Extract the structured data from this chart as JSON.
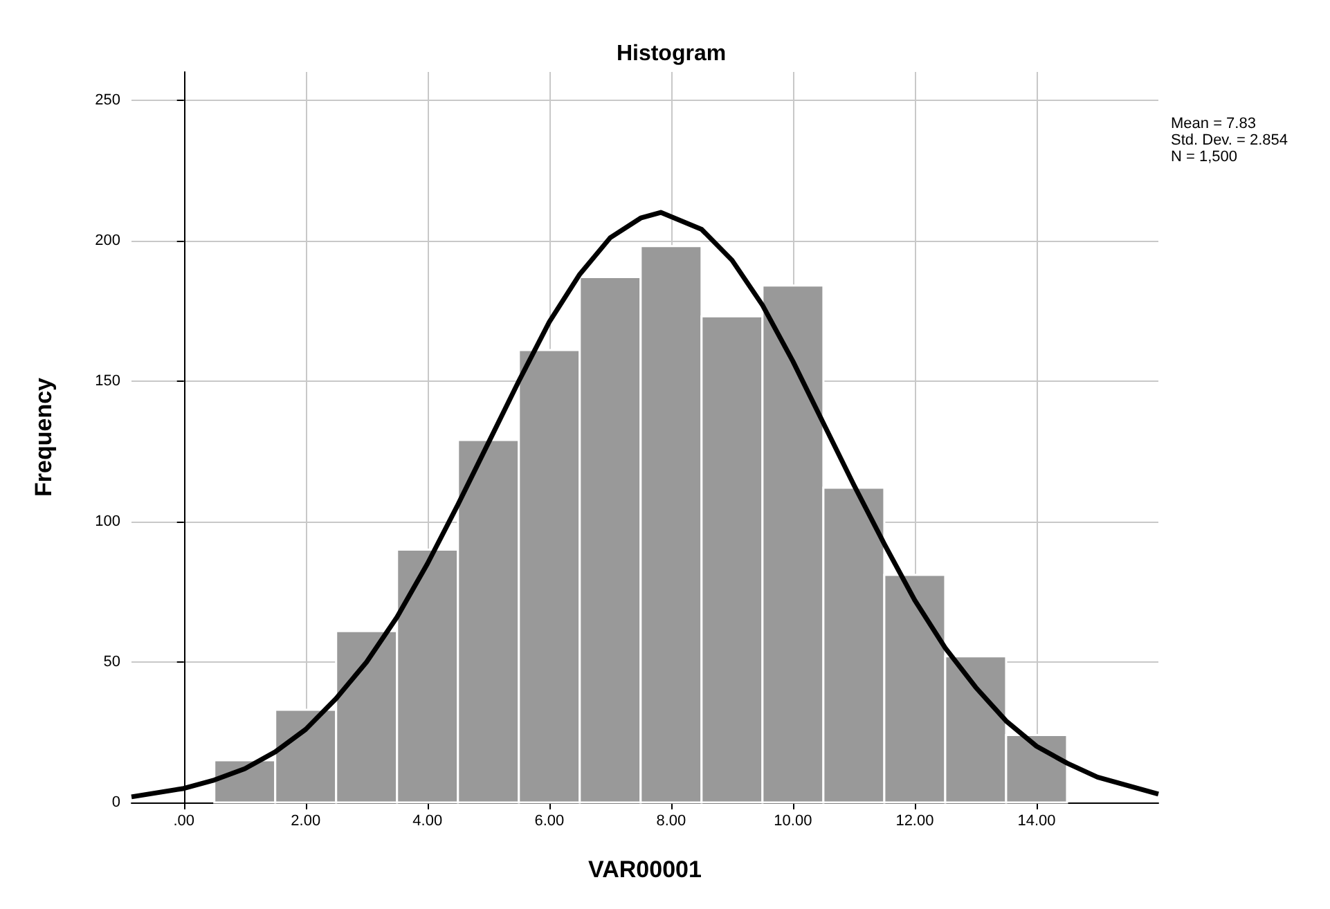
{
  "chart_data": {
    "type": "histogram",
    "title": "Histogram",
    "xlabel": "VAR00001",
    "ylabel": "Frequency",
    "bins": [
      0.5,
      1.5,
      2.5,
      3.5,
      4.5,
      5.5,
      6.5,
      7.5,
      8.5,
      9.5,
      10.5,
      11.5,
      12.5,
      13.5,
      14.5
    ],
    "values": [
      15,
      33,
      61,
      90,
      129,
      161,
      187,
      198,
      173,
      184,
      112,
      81,
      52,
      24
    ],
    "color": "#999999",
    "series": [
      {
        "type": "line",
        "color": "#000000",
        "x": [
          -0.86,
          0,
          0.5,
          1,
          1.5,
          2,
          2.5,
          3,
          3.5,
          4,
          4.5,
          5,
          5.5,
          6,
          6.5,
          7,
          7.5,
          7.83,
          8.5,
          9,
          9.5,
          10,
          10.5,
          11,
          11.5,
          12,
          12.5,
          13,
          13.5,
          14,
          14.5,
          15,
          15.5,
          16
        ],
        "values": [
          2,
          5,
          8,
          12,
          18,
          26,
          37,
          50,
          66,
          85,
          106,
          128,
          150,
          171,
          188,
          201,
          208,
          210,
          204,
          193,
          177,
          157,
          135,
          113,
          92,
          72,
          55,
          41,
          29,
          20,
          14,
          9,
          6,
          3
        ]
      }
    ],
    "xlim": [
      -0.86,
      16
    ],
    "xticks": [
      {
        "value": 0,
        "label": ".00"
      },
      {
        "value": 2,
        "label": "2.00"
      },
      {
        "value": 4,
        "label": "4.00"
      },
      {
        "value": 6,
        "label": "6.00"
      },
      {
        "value": 8,
        "label": "8.00"
      },
      {
        "value": 10,
        "label": "10.00"
      },
      {
        "value": 12,
        "label": "12.00"
      },
      {
        "value": 14,
        "label": "14.00"
      }
    ],
    "ylim": [
      0,
      260
    ],
    "yticks": [
      0,
      50,
      100,
      150,
      200,
      250
    ],
    "grid": true,
    "marker": "none",
    "line_style": "solid",
    "annotations": [
      "Mean = 7.83",
      "Std. Dev. = 2.854",
      "N = 1,500"
    ]
  }
}
